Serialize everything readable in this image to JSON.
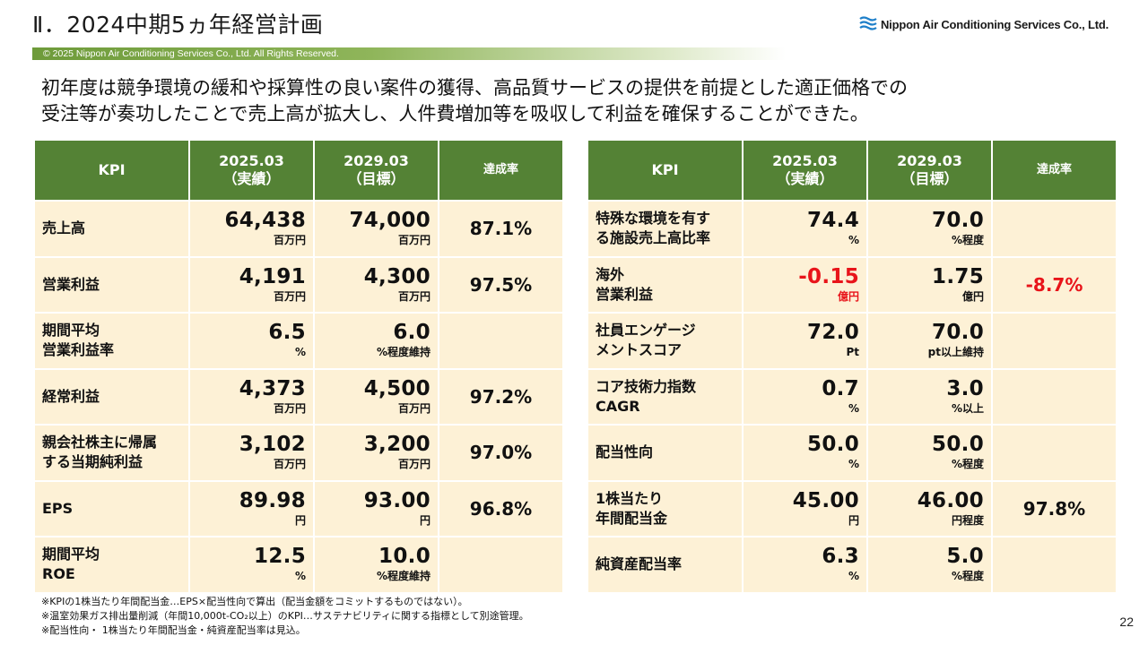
{
  "header": {
    "title": "Ⅱ．2024中期5ヵ年経営計画",
    "logo_text": "Nippon Air Conditioning Services Co., Ltd.",
    "copyright": "© 2025 Nippon Air Conditioning Services Co., Ltd. All Rights Reserved."
  },
  "lead_lines": [
    "初年度は競争環境の緩和や採算性の良い案件の獲得、高品質サービスの提供を前提とした適正価格での",
    "受注等が奏功したことで売上高が拡大し、人件費増加等を吸収して利益を確保することができた。"
  ],
  "columns": {
    "kpi": "KPI",
    "actual_year": "2025.03",
    "actual_note": "（実績）",
    "target_year": "2029.03",
    "target_note": "（目標）",
    "rate": "達成率"
  },
  "left_table": [
    {
      "label": [
        "売上高"
      ],
      "actual": "64,438",
      "actual_unit": "百万円",
      "target": "74,000",
      "target_unit": "百万円",
      "rate": "87.1%"
    },
    {
      "label": [
        "営業利益"
      ],
      "actual": "4,191",
      "actual_unit": "百万円",
      "target": "4,300",
      "target_unit": "百万円",
      "rate": "97.5%"
    },
    {
      "label": [
        "期間平均",
        "営業利益率"
      ],
      "actual": "6.5",
      "actual_unit": "%",
      "target": "6.0",
      "target_unit": "%程度維持",
      "rate": ""
    },
    {
      "label": [
        "経常利益"
      ],
      "actual": "4,373",
      "actual_unit": "百万円",
      "target": "4,500",
      "target_unit": "百万円",
      "rate": "97.2%"
    },
    {
      "label": [
        "親会社株主に帰属",
        "する当期純利益"
      ],
      "actual": "3,102",
      "actual_unit": "百万円",
      "target": "3,200",
      "target_unit": "百万円",
      "rate": "97.0%"
    },
    {
      "label": [
        "EPS"
      ],
      "actual": "89.98",
      "actual_unit": "円",
      "target": "93.00",
      "target_unit": "円",
      "rate": "96.8%"
    },
    {
      "label": [
        "期間平均",
        "ROE"
      ],
      "actual": "12.5",
      "actual_unit": "%",
      "target": "10.0",
      "target_unit": "%程度維持",
      "rate": ""
    }
  ],
  "right_table": [
    {
      "label": [
        "特殊な環境を有す",
        "る施設売上高比率"
      ],
      "actual": "74.4",
      "actual_unit": "%",
      "target": "70.0",
      "target_unit": "%程度",
      "rate": ""
    },
    {
      "label": [
        "海外",
        "営業利益"
      ],
      "actual": "-0.15",
      "actual_unit": "億円",
      "target": "1.75",
      "target_unit": "億円",
      "rate": "-8.7%",
      "negative": true
    },
    {
      "label": [
        "社員エンゲージ",
        "メントスコア"
      ],
      "actual": "72.0",
      "actual_unit": "Pt",
      "target": "70.0",
      "target_unit": "pt以上維持",
      "rate": ""
    },
    {
      "label": [
        "コア技術力指数",
        "CAGR"
      ],
      "actual": "0.7",
      "actual_unit": "%",
      "target": "3.0",
      "target_unit": "%以上",
      "rate": ""
    },
    {
      "label": [
        "配当性向"
      ],
      "actual": "50.0",
      "actual_unit": "%",
      "target": "50.0",
      "target_unit": "%程度",
      "rate": ""
    },
    {
      "label": [
        "1株当たり",
        "年間配当金"
      ],
      "actual": "45.00",
      "actual_unit": "円",
      "target": "46.00",
      "target_unit": "円程度",
      "rate": "97.8%"
    },
    {
      "label": [
        "純資産配当率"
      ],
      "actual": "6.3",
      "actual_unit": "%",
      "target": "5.0",
      "target_unit": "%程度",
      "rate": ""
    }
  ],
  "notes": [
    "※KPIの1株当たり年間配当金…EPS×配当性向で算出（配当金額をコミットするものではない）。",
    "※温室効果ガス排出量削減（年間10,000t-CO₂以上）のKPI…サステナビリティに関する指標として別途管理。",
    "※配当性向・ 1株当たり年間配当金・純資産配当率は見込。"
  ],
  "page_number": "22",
  "colors": {
    "header_green": "#548235",
    "cell_cream": "#fdf1d6",
    "negative_red": "#e8141a"
  }
}
